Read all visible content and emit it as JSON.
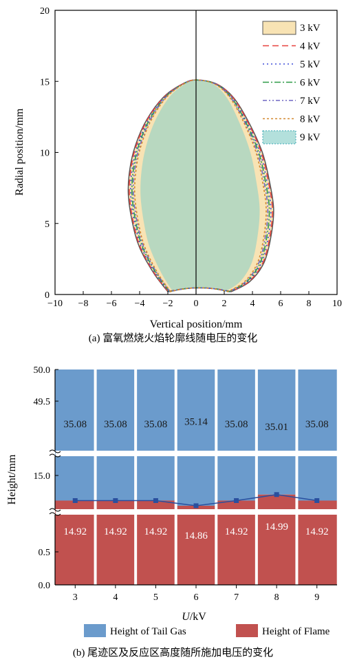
{
  "chart_data": [
    {
      "type": "area",
      "xlabel": "Vertical position/mm",
      "ylabel": "Radial position/mm",
      "xlim": [
        -10,
        10
      ],
      "ylim": [
        0,
        20
      ],
      "xticks": [
        -10,
        -8,
        -6,
        -4,
        -2,
        0,
        2,
        4,
        6,
        8,
        10
      ],
      "yticks": [
        0,
        5,
        10,
        15,
        20
      ],
      "x_tick_labels": [
        "−10",
        "−8",
        "−6",
        "−4",
        "−2",
        "0",
        "2",
        "4",
        "6",
        "8",
        "10"
      ],
      "legend_position": "top-right",
      "caption": "(a) 富氧燃烧火焰轮廓线随电压的变化",
      "series": [
        {
          "name": "3 kV",
          "style": "filled",
          "fill": "#f8e3b4",
          "stroke": "#555555",
          "dash": "",
          "width_factor": 1.0
        },
        {
          "name": "4 kV",
          "style": "line",
          "stroke": "#e8413c",
          "dash": "9,5",
          "width_factor": 0.985
        },
        {
          "name": "5 kV",
          "style": "line",
          "stroke": "#3b4bd8",
          "dash": "2,4",
          "width_factor": 0.965
        },
        {
          "name": "6 kV",
          "style": "line",
          "stroke": "#2b9a46",
          "dash": "9,3,2,3",
          "width_factor": 0.945
        },
        {
          "name": "7 kV",
          "style": "line",
          "stroke": "#6f66c4",
          "dash": "6,3,2,3,2,3",
          "width_factor": 0.925
        },
        {
          "name": "8 kV",
          "style": "line",
          "stroke": "#d2872e",
          "dash": "3,3",
          "width_factor": 0.905
        },
        {
          "name": "9 kV",
          "style": "filled",
          "fill": "#b3e0dc",
          "stroke": "#3aa7b5",
          "dash": "2,2",
          "width_factor": 0.82
        }
      ],
      "inner_fill_color": "#b8d8c0"
    },
    {
      "type": "bar",
      "stacked": true,
      "broken_y_axis": true,
      "xlabel": "U/kV",
      "xlabel_parts": {
        "var": "U",
        "unit": "/kV"
      },
      "ylabel": "Height/mm",
      "categories": [
        "3",
        "4",
        "5",
        "6",
        "7",
        "8",
        "9"
      ],
      "y_tick_labels": [
        "0.0",
        "0.5",
        "15.0",
        "49.5",
        "50.0"
      ],
      "legend_position": "bottom",
      "caption": "(b) 尾迹区及反应区高度随所施加电压的变化",
      "series": [
        {
          "name": "Height of Flame",
          "color": "#c1514f",
          "values": [
            14.92,
            14.92,
            14.92,
            14.86,
            14.92,
            14.99,
            14.92
          ]
        },
        {
          "name": "Height of Tail Gas",
          "color": "#6b9bcc",
          "values": [
            35.08,
            35.08,
            35.08,
            35.14,
            35.08,
            35.01,
            35.08
          ]
        }
      ],
      "value_labels": {
        "flame": [
          "14.92",
          "14.92",
          "14.92",
          "14.86",
          "14.92",
          "14.99",
          "14.92"
        ],
        "tail": [
          "35.08",
          "35.08",
          "35.08",
          "35.14",
          "35.08",
          "35.01",
          "35.08"
        ]
      },
      "line_color": "#2a4f9e"
    }
  ]
}
